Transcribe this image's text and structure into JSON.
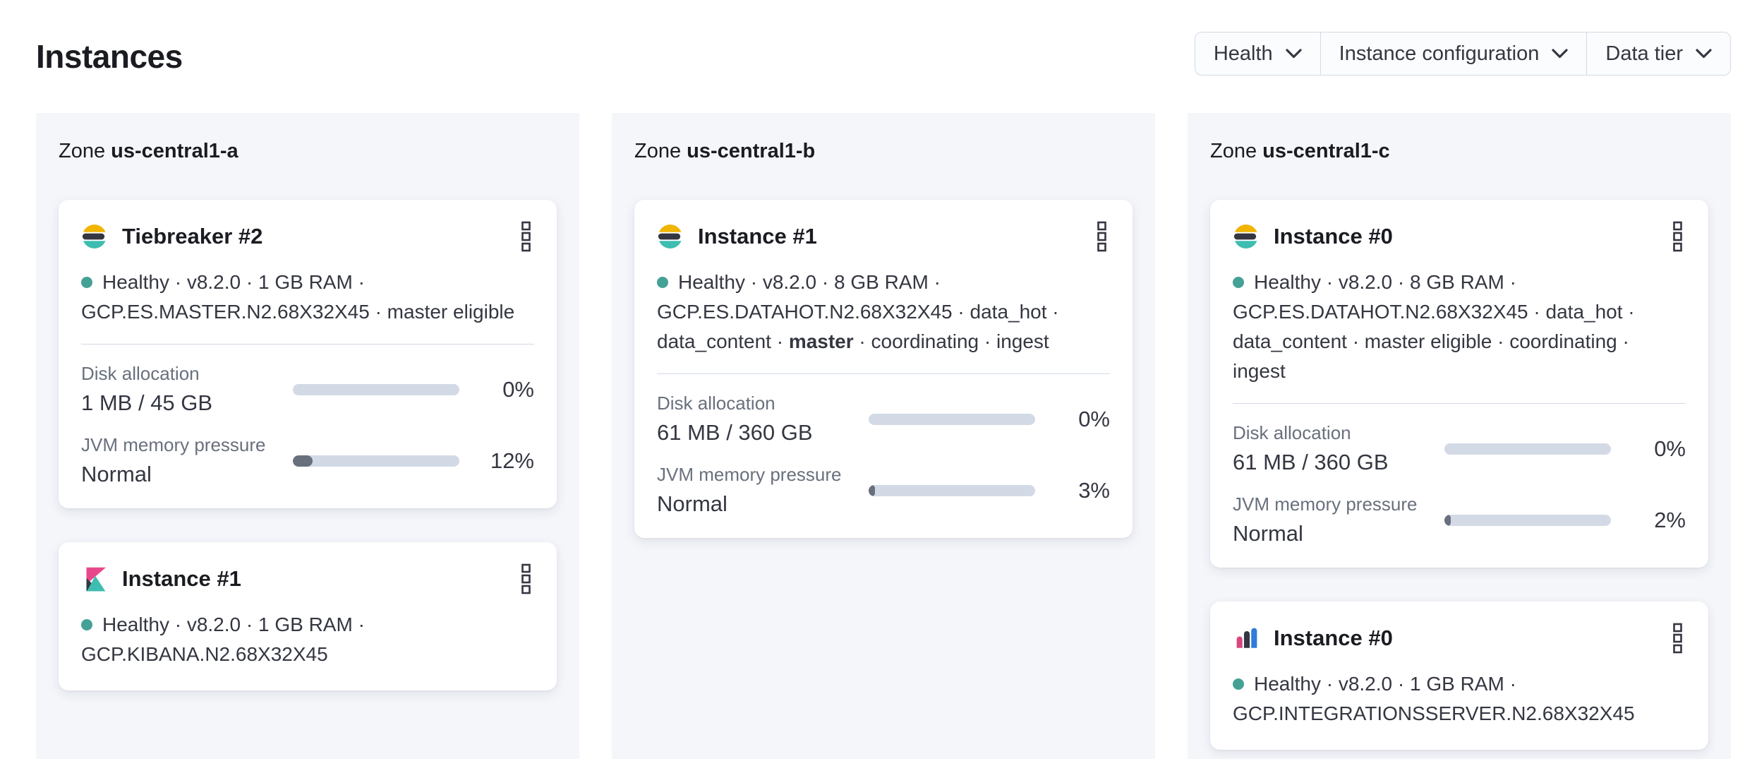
{
  "page": {
    "title": "Instances"
  },
  "filters": {
    "items": [
      {
        "label": "Health"
      },
      {
        "label": "Instance configuration"
      },
      {
        "label": "Data tier"
      }
    ]
  },
  "zones": [
    {
      "label_prefix": "Zone",
      "name": "us-central1-a",
      "cards": [
        {
          "icon": "elasticsearch-logo",
          "title": "Tiebreaker #2",
          "status": {
            "prefix": "Healthy · v8.2.0 · 1 GB RAM · GCP.ES.MASTER.N2.68X32X45 · master eligible",
            "bold": "",
            "suffix": ""
          },
          "metrics": [
            {
              "label": "Disk allocation",
              "value": "1 MB / 45 GB",
              "pct": "0%"
            },
            {
              "label": "JVM memory pressure",
              "value": "Normal",
              "pct": "12%"
            }
          ]
        },
        {
          "icon": "kibana-logo",
          "title": "Instance #1",
          "status": {
            "prefix": "Healthy · v8.2.0 · 1 GB RAM · GCP.KIBANA.N2.68X32X45",
            "bold": "",
            "suffix": ""
          }
        }
      ]
    },
    {
      "label_prefix": "Zone",
      "name": "us-central1-b",
      "cards": [
        {
          "icon": "elasticsearch-logo",
          "title": "Instance #1",
          "status": {
            "prefix": "Healthy · v8.2.0 · 8 GB RAM · GCP.ES.DATAHOT.N2.68X32X45 · data_hot · data_content · ",
            "bold": "master",
            "suffix": " · coordinating · ingest"
          },
          "metrics": [
            {
              "label": "Disk allocation",
              "value": "61 MB / 360 GB",
              "pct": "0%"
            },
            {
              "label": "JVM memory pressure",
              "value": "Normal",
              "pct": "3%"
            }
          ]
        }
      ]
    },
    {
      "label_prefix": "Zone",
      "name": "us-central1-c",
      "cards": [
        {
          "icon": "elasticsearch-logo",
          "title": "Instance #0",
          "status": {
            "prefix": "Healthy · v8.2.0 · 8 GB RAM · GCP.ES.DATAHOT.N2.68X32X45 · data_hot · data_content · master eligible · coordinating · ingest",
            "bold": "",
            "suffix": ""
          },
          "metrics": [
            {
              "label": "Disk allocation",
              "value": "61 MB / 360 GB",
              "pct": "0%"
            },
            {
              "label": "JVM memory pressure",
              "value": "Normal",
              "pct": "2%"
            }
          ]
        },
        {
          "icon": "integrations-server-logo",
          "title": "Instance #0",
          "status": {
            "prefix": "Healthy · v8.2.0 · 1 GB RAM · GCP.INTEGRATIONSSERVER.N2.68X32X45",
            "bold": "",
            "suffix": ""
          }
        }
      ]
    }
  ],
  "colors": {
    "healthy_dot": "#45a195",
    "bar_track": "#d3dae6",
    "bar_fill": "#69707d",
    "zone_bg": "#f4f6fa",
    "logo_yellow": "#f1b400",
    "logo_teal": "#3ebdb0",
    "logo_dark": "#343741",
    "logo_pink": "#e8488b",
    "logo_blue": "#2f7cda"
  }
}
